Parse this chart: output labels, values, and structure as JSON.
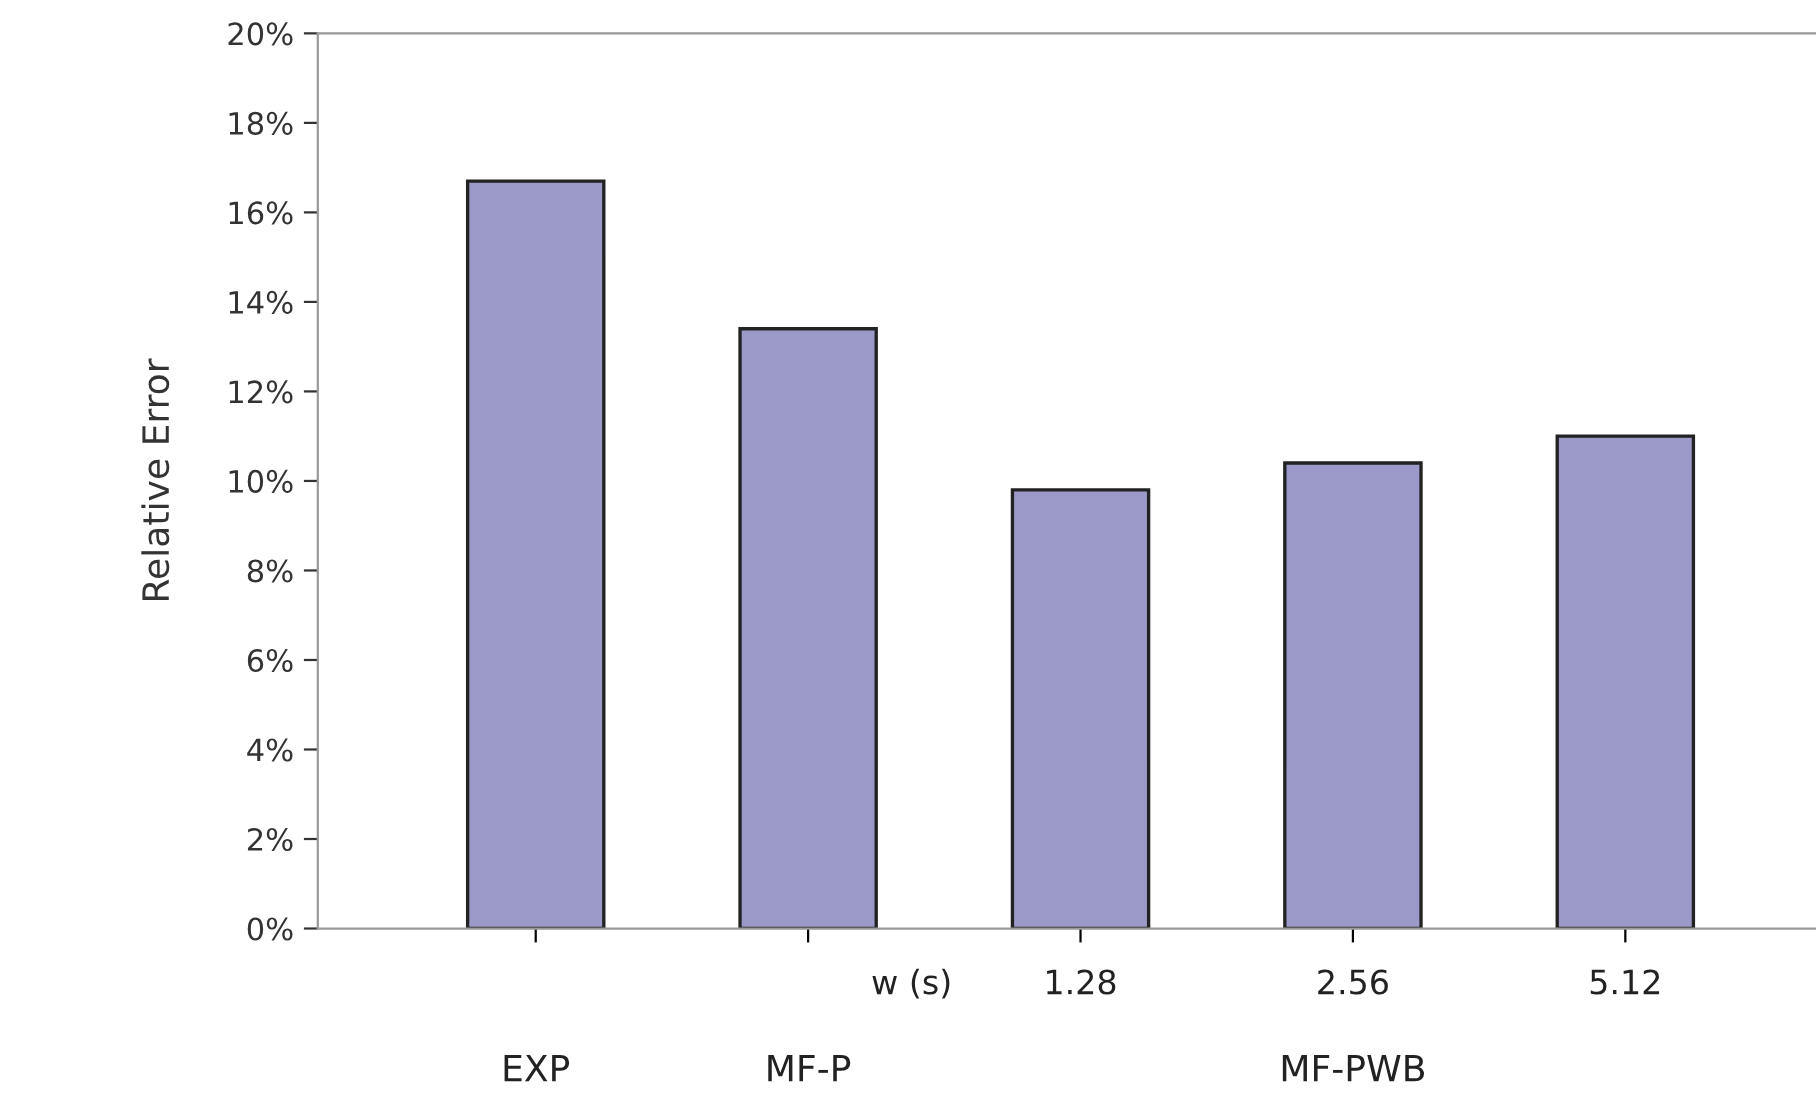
{
  "chart_data": {
    "type": "bar",
    "ylabel": "Relative Error",
    "categories": [
      "EXP",
      "MF-P",
      "1.28",
      "2.56",
      "5.12"
    ],
    "values": [
      16.7,
      13.4,
      9.8,
      10.4,
      11.0
    ],
    "color": "#9b99c8",
    "ylim": [
      0,
      20
    ],
    "yticks": [
      {
        "value": 0,
        "label": "0%"
      },
      {
        "value": 2,
        "label": "2%"
      },
      {
        "value": 4,
        "label": "4%"
      },
      {
        "value": 6,
        "label": "6%"
      },
      {
        "value": 8,
        "label": "8%"
      },
      {
        "value": 10,
        "label": "10%"
      },
      {
        "value": 12,
        "label": "12%"
      },
      {
        "value": 14,
        "label": "14%"
      },
      {
        "value": 16,
        "label": "16%"
      },
      {
        "value": 18,
        "label": "18%"
      },
      {
        "value": 20,
        "label": "20%"
      }
    ],
    "annotations": [
      "w (s)",
      "MF-PWB"
    ],
    "grid": false,
    "legend": false
  }
}
